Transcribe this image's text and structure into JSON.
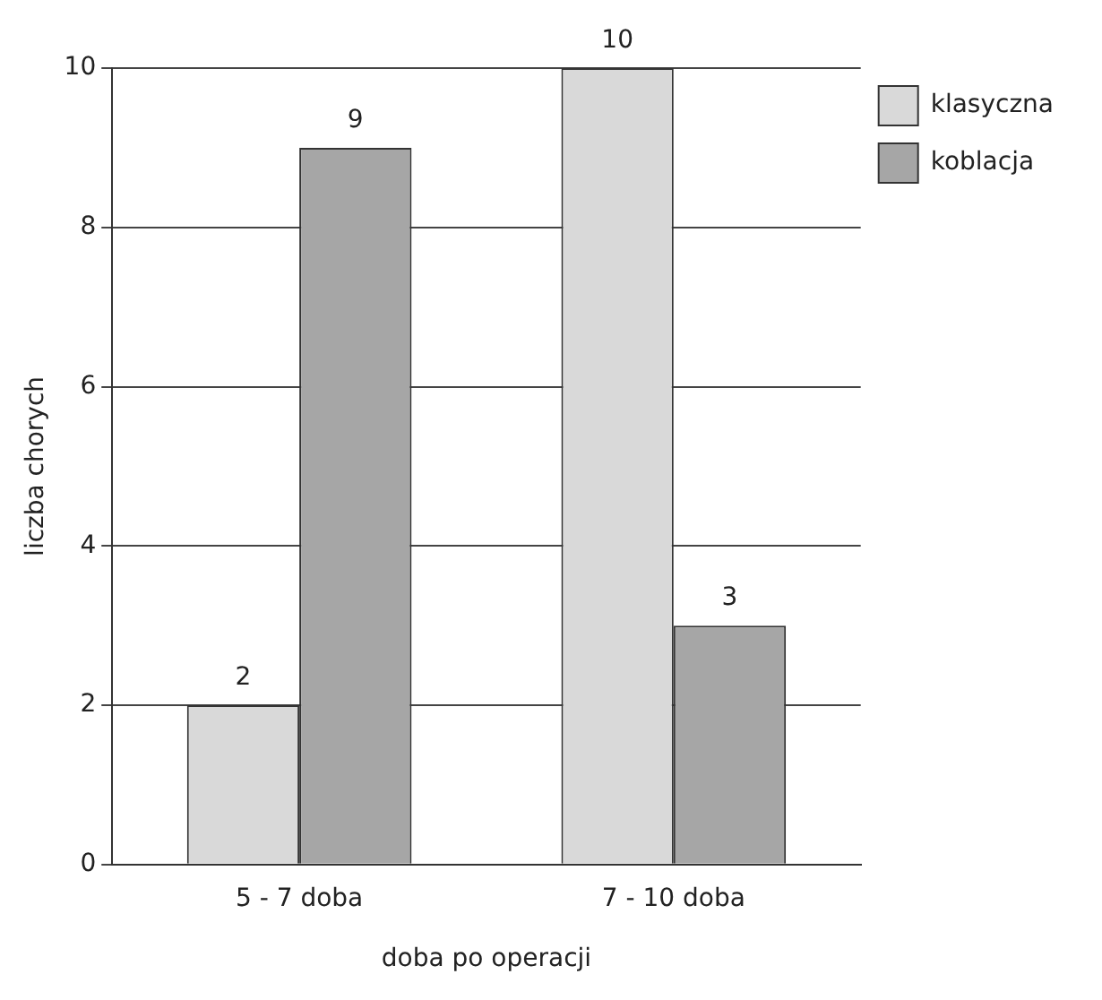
{
  "chart_data": {
    "type": "bar",
    "xlabel": "doba po operacji",
    "ylabel": "liczba chorych",
    "categories": [
      "5 - 7 doba",
      "7 - 10 doba"
    ],
    "series": [
      {
        "name": "klasyczna",
        "color": "#d9d9d9",
        "values": [
          2,
          10
        ]
      },
      {
        "name": "koblacja",
        "color": "#a6a6a6",
        "values": [
          9,
          3
        ]
      }
    ],
    "ylim": [
      0,
      10
    ],
    "yticks": [
      0,
      2,
      4,
      6,
      8,
      10
    ],
    "grid": "y",
    "legend": "top right",
    "data_labels": true
  }
}
